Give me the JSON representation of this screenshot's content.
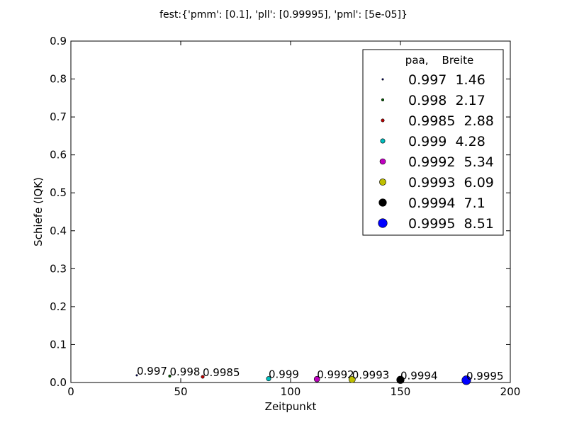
{
  "chart_data": {
    "type": "scatter",
    "title": "fest:{'pmm': [0.1], 'pll': [0.99995], 'pml': [5e-05]}",
    "xlabel": "Zeitpunkt",
    "ylabel": "Schiefe (IQK)",
    "xlim": [
      0,
      200
    ],
    "ylim": [
      0,
      0.9
    ],
    "xticks": [
      "0",
      "50",
      "100",
      "150",
      "200"
    ],
    "yticks": [
      "0.0",
      "0.1",
      "0.2",
      "0.3",
      "0.4",
      "0.5",
      "0.6",
      "0.7",
      "0.8",
      "0.9"
    ],
    "grid": false,
    "legend": {
      "placement": "top-right",
      "header": "paa,    Breite"
    },
    "series": [
      {
        "name": "0.997  1.46",
        "label": "0.997",
        "x": 30,
        "y": 0.019,
        "color": "#000080"
      },
      {
        "name": "0.998  2.17",
        "label": "0.998",
        "x": 45,
        "y": 0.017,
        "color": "#006400"
      },
      {
        "name": "0.9985  2.88",
        "label": "0.9985",
        "x": 60,
        "y": 0.015,
        "color": "#c00000"
      },
      {
        "name": "0.999  4.28",
        "label": "0.999",
        "x": 90,
        "y": 0.01,
        "color": "#00bfbf"
      },
      {
        "name": "0.9992  5.34",
        "label": "0.9992",
        "x": 112,
        "y": 0.009,
        "color": "#bf00bf"
      },
      {
        "name": "0.9993  6.09",
        "label": "0.9993",
        "x": 128,
        "y": 0.008,
        "color": "#bfbf00"
      },
      {
        "name": "0.9994  7.1",
        "label": "0.9994",
        "x": 150,
        "y": 0.007,
        "color": "#000000"
      },
      {
        "name": "0.9995  8.51",
        "label": "0.9995",
        "x": 180,
        "y": 0.006,
        "color": "#0000ff"
      }
    ]
  }
}
